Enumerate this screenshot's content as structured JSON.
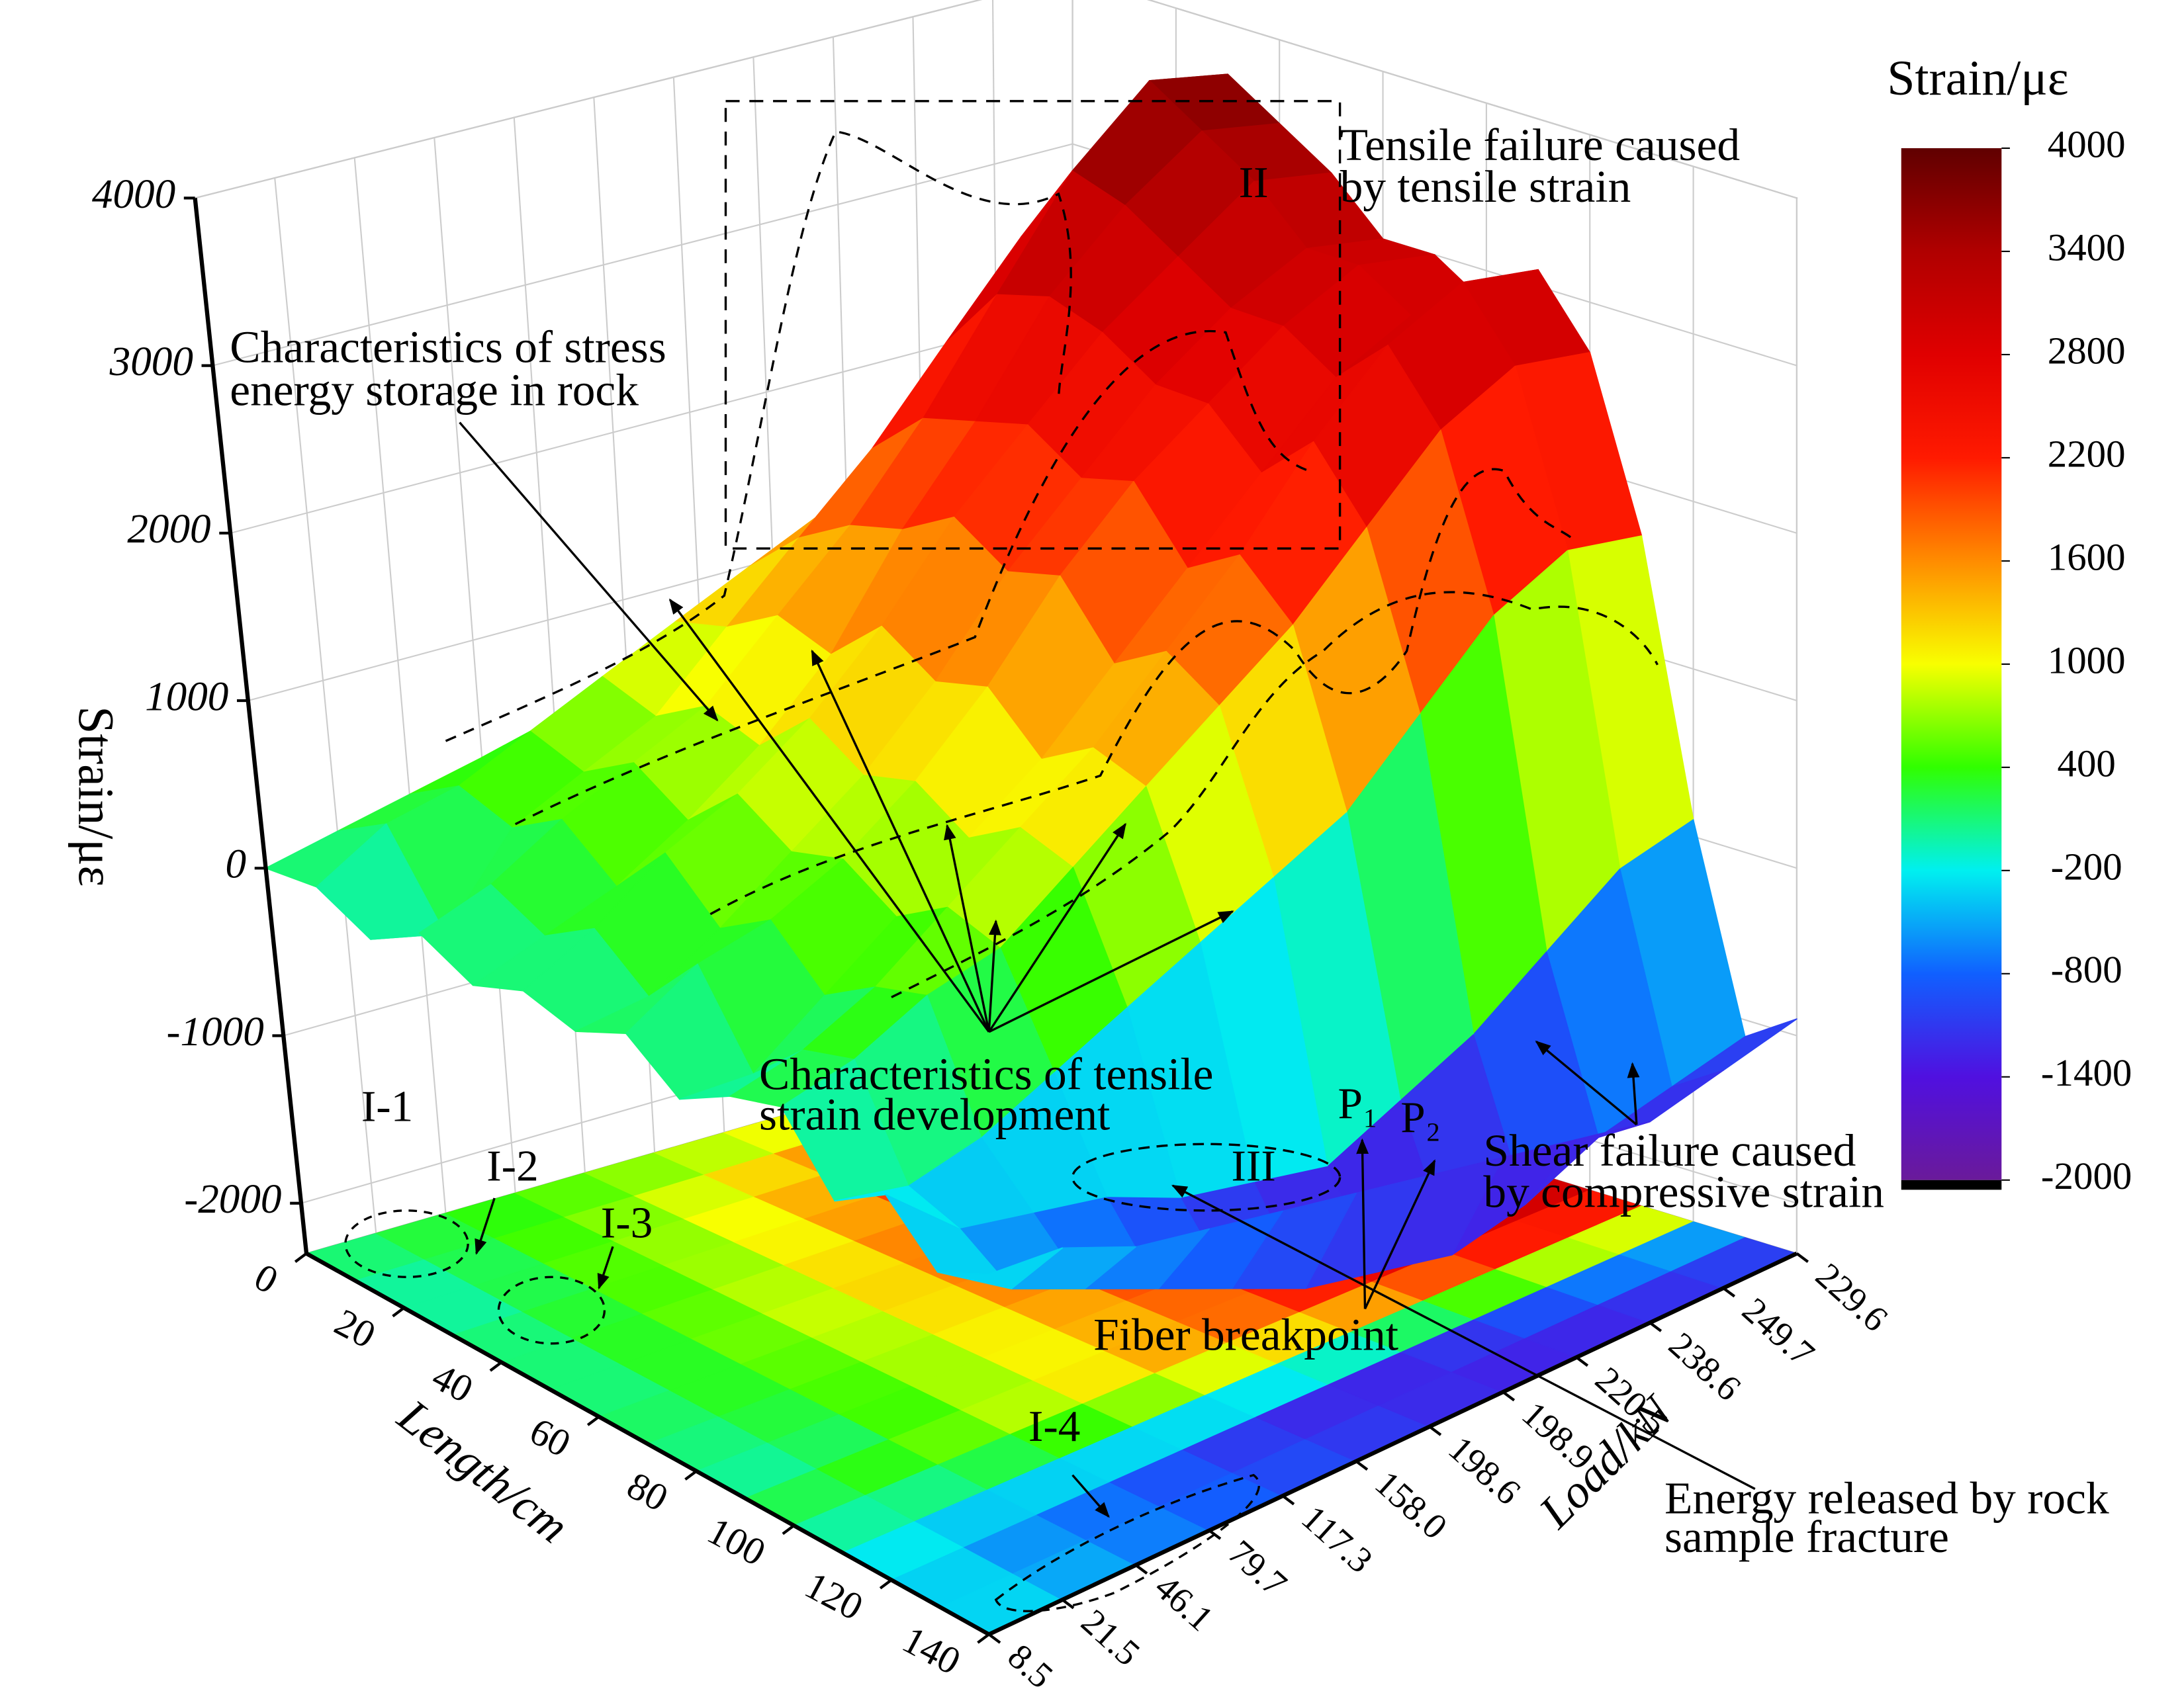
{
  "chart_data": {
    "type": "surface3d",
    "z_title": "Strain/με",
    "x_title": "Length/cm",
    "y_title": "Load/kN",
    "colorbar_title": "Strain/με",
    "x": [
      0,
      10,
      20,
      30,
      40,
      50,
      60,
      70,
      80,
      90,
      100,
      110,
      120,
      130,
      140
    ],
    "xlim": [
      0,
      140
    ],
    "xticks": [
      0,
      20,
      40,
      60,
      80,
      100,
      120,
      140
    ],
    "categories": [
      "8.5",
      "21.5",
      "46.1",
      "79.7",
      "117.3",
      "158.0",
      "198.6",
      "198.9",
      "220.5",
      "238.6",
      "249.7",
      "229.6"
    ],
    "z": [
      [
        0,
        50,
        -100,
        100,
        -50,
        80,
        0,
        150,
        -80,
        100,
        200,
        -200,
        0,
        -300,
        -150
      ],
      [
        100,
        300,
        -200,
        250,
        100,
        300,
        50,
        400,
        -100,
        200,
        300,
        -300,
        -400,
        -600,
        -200
      ],
      [
        200,
        400,
        300,
        500,
        250,
        600,
        300,
        500,
        200,
        400,
        500,
        -200,
        -500,
        -800,
        -400
      ],
      [
        300,
        600,
        500,
        700,
        500,
        800,
        600,
        700,
        500,
        700,
        600,
        0,
        -600,
        -1000,
        -500
      ],
      [
        400,
        800,
        700,
        900,
        800,
        1100,
        900,
        1000,
        800,
        1000,
        900,
        200,
        -800,
        -1200,
        -600
      ],
      [
        500,
        1000,
        1100,
        1300,
        1200,
        1500,
        1300,
        1400,
        1100,
        1300,
        1200,
        400,
        -900,
        -1400,
        -700
      ],
      [
        600,
        1200,
        1500,
        1700,
        1800,
        2000,
        1800,
        1900,
        1500,
        1700,
        1500,
        600,
        -1000,
        -1500,
        -800
      ],
      [
        700,
        1400,
        1900,
        2200,
        2300,
        2400,
        2200,
        2300,
        1900,
        2100,
        1800,
        800,
        -800,
        -1600,
        -900
      ],
      [
        800,
        1600,
        2400,
        2800,
        2900,
        2800,
        2600,
        2600,
        2300,
        2600,
        2200,
        1200,
        -600,
        -1500,
        -1000
      ],
      [
        900,
        1800,
        2900,
        3400,
        3300,
        3100,
        2900,
        2900,
        2700,
        3000,
        2600,
        1600,
        -300,
        -1300,
        -1100
      ],
      [
        1000,
        2000,
        3300,
        3800,
        3600,
        3400,
        3100,
        3100,
        2900,
        3200,
        2800,
        1800,
        0,
        -1200,
        -1000
      ],
      [
        1000,
        2000,
        3200,
        3700,
        3500,
        3300,
        3000,
        3000,
        2800,
        3100,
        2700,
        1700,
        100,
        -1100,
        -900
      ]
    ],
    "zlim": [
      -2300,
      4000
    ],
    "zticks": [
      -2000,
      -1000,
      0,
      1000,
      2000,
      3000,
      4000
    ],
    "clim": [
      -2000,
      4000
    ],
    "colorbar_ticks": [
      4000,
      3400,
      2800,
      2200,
      1600,
      1000,
      400,
      -200,
      -800,
      -1400,
      -2000
    ],
    "colorscale": [
      "#6a1a9a",
      "#5010e0",
      "#1060ff",
      "#00f0f0",
      "#30ff00",
      "#f8ff00",
      "#ff8c00",
      "#ff1a00",
      "#e00000",
      "#b00000",
      "#600000"
    ],
    "grid": true,
    "annotations": [
      "Tensile failure caused",
      "by tensile strain",
      "Characteristics of stress",
      "energy storage in rock",
      "Characteristics of tensile",
      "strain development",
      "Shear failure caused",
      "by compressive strain",
      "Fiber breakpoint",
      "Energy released by rock",
      "sample fracture"
    ],
    "region_labels": [
      "II",
      "III",
      "I-1",
      "I-2",
      "I-3",
      "I-4",
      "P₁",
      "P₂"
    ]
  }
}
